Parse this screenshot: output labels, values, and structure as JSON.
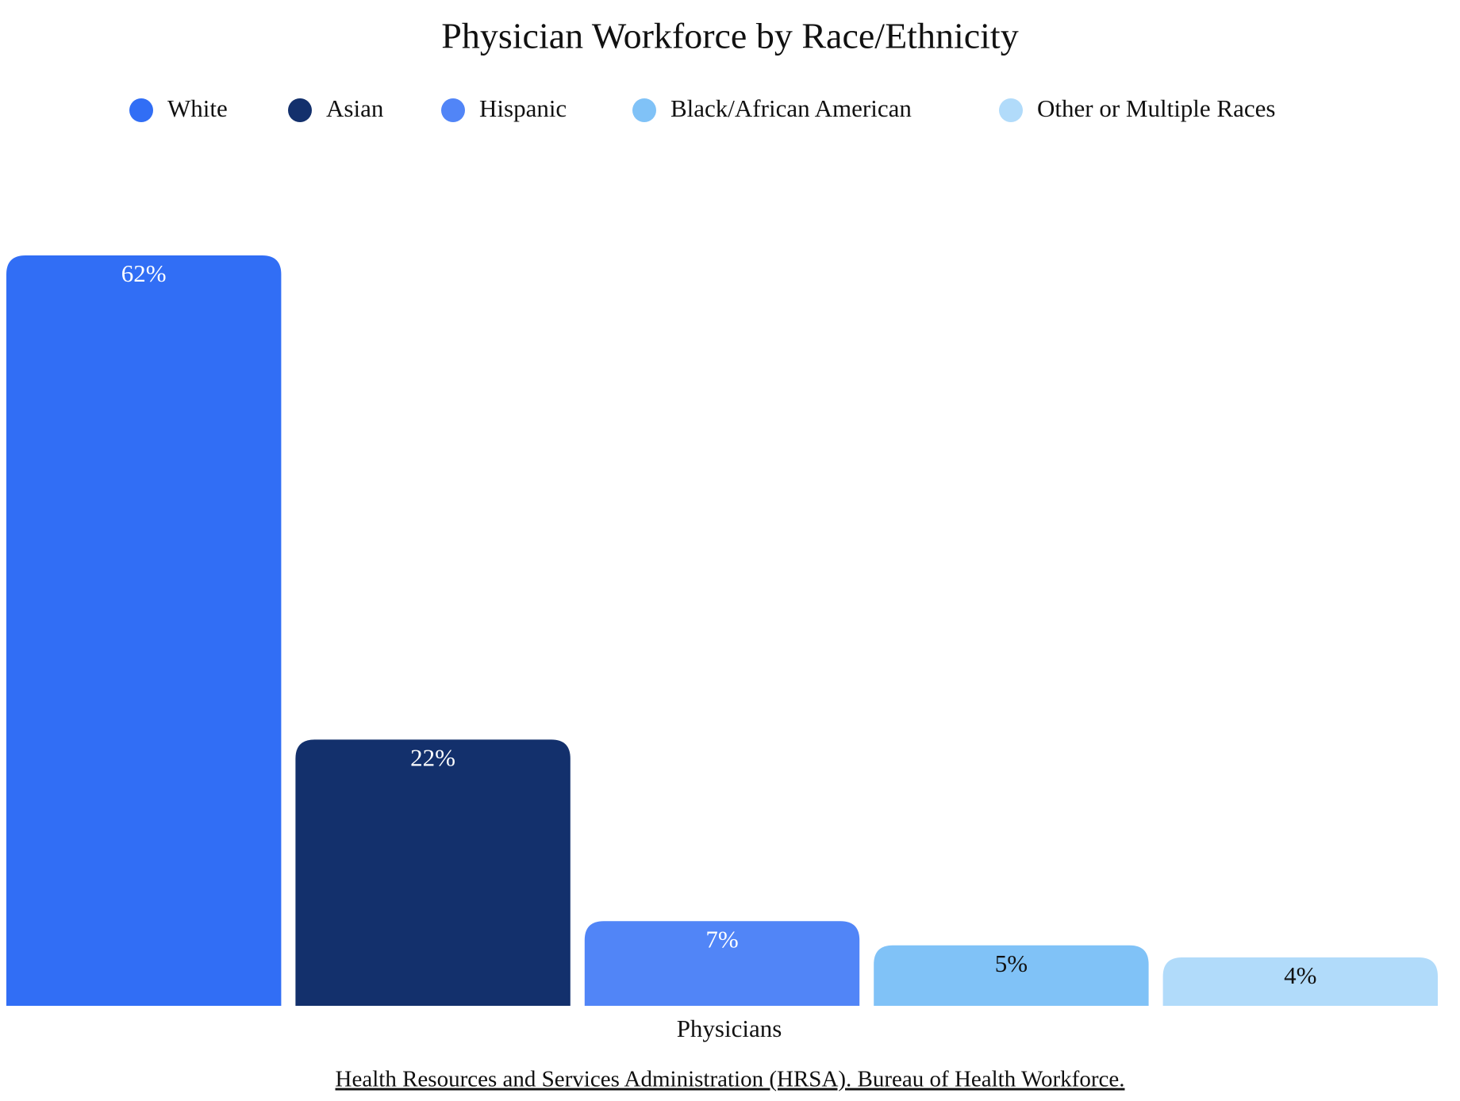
{
  "chart_data": {
    "type": "bar",
    "title": "Physician Workforce by Race/Ethnicity",
    "categories": [
      "Physicians"
    ],
    "series": [
      {
        "name": "White",
        "color": "#316ef5",
        "values": [
          62
        ],
        "value_labels": [
          "62%"
        ]
      },
      {
        "name": "Asian",
        "color": "#13306c",
        "values": [
          22
        ],
        "value_labels": [
          "22%"
        ]
      },
      {
        "name": "Hispanic",
        "color": "#5185f7",
        "values": [
          7
        ],
        "value_labels": [
          "7%"
        ]
      },
      {
        "name": "Black/African American",
        "color": "#80c2f7",
        "values": [
          5
        ],
        "value_labels": [
          "5%"
        ]
      },
      {
        "name": "Other or Multiple Races",
        "color": "#b1dbfa",
        "values": [
          4
        ],
        "value_labels": [
          "4%"
        ]
      }
    ],
    "source": "Health Resources and Services Administration (HRSA). Bureau of Health Workforce."
  }
}
